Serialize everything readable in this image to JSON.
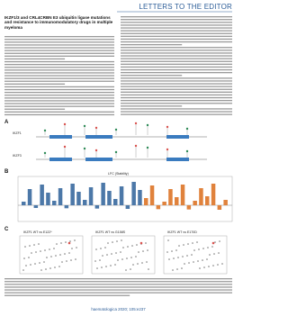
{
  "header": {
    "section": "LETTERS TO THE EDITOR"
  },
  "article": {
    "title": "IKZF1/3 and CRL4CRBN E3 ubiquitin ligase mutations and resistance to immunomodulatory drugs in multiple myeloma"
  },
  "figure": {
    "panels": [
      {
        "label": "A",
        "titles": [
          "IKZF1",
          "IKZF3"
        ]
      },
      {
        "label": "B",
        "titles": [
          "LFC (Stability)"
        ]
      },
      {
        "label": "C",
        "titles": [
          "IKZF1 WT vs E122*",
          "IKZF1 WT vs G158S",
          "IKZF1 WT vs E170D"
        ]
      }
    ]
  },
  "footer": {
    "citation": "haematologica 2020; 105:e237"
  }
}
